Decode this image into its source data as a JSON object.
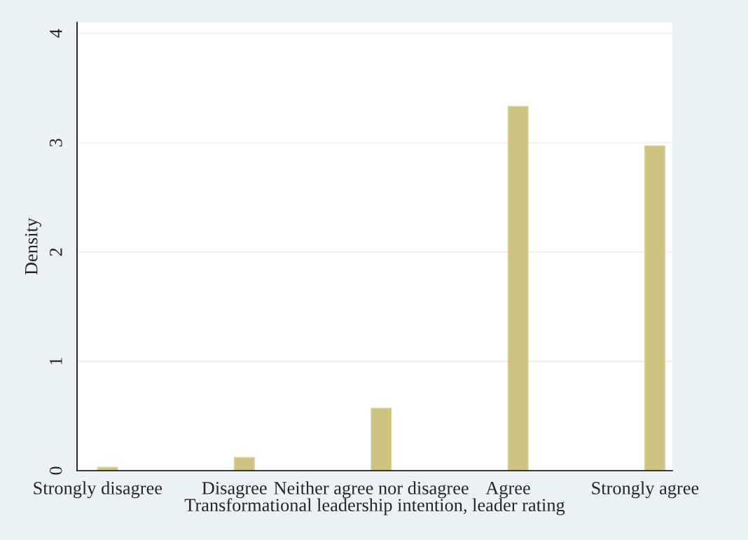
{
  "chart_data": {
    "type": "bar",
    "xlabel": "Transformational leadership intention, leader rating",
    "ylabel": "Density",
    "categories": [
      "Strongly disagree",
      "Disagree",
      "Neither agree nor disagree",
      "Agree",
      "Strongly agree"
    ],
    "values": [
      0.03,
      0.12,
      0.57,
      3.33,
      2.97
    ],
    "color": "#cbc37f",
    "ylim": [
      0,
      4.1
    ],
    "yticks": [
      0,
      1,
      2,
      3,
      4
    ],
    "grid": "y"
  }
}
